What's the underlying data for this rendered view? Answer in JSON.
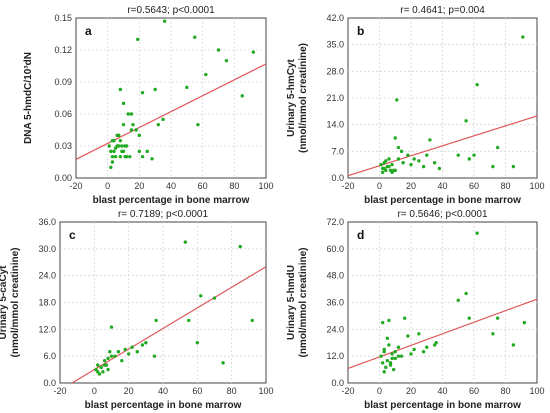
{
  "chart_data": [
    {
      "type": "scatter",
      "panel": "a",
      "stat": "r=0.5643; p<0.0001",
      "xlabel": "blast percentage in bone marrow",
      "ylabel": [
        "DNA 5-hmdC/10³dN"
      ],
      "xlim": [
        -20,
        100
      ],
      "ylim": [
        0.0,
        0.15
      ],
      "xticks": [
        "-20",
        "0",
        "20",
        "40",
        "60",
        "80",
        "100"
      ],
      "yticks": [
        "0.00",
        "0.03",
        "0.06",
        "0.09",
        "0.12",
        "0.15"
      ],
      "fit": [
        [
          -20,
          0.0175
        ],
        [
          100,
          0.107
        ]
      ],
      "x": [
        1,
        2,
        3,
        4,
        5,
        6,
        7,
        8,
        9,
        10,
        11,
        12,
        2,
        3,
        5,
        6,
        8,
        10,
        12,
        14,
        3,
        4,
        7,
        9,
        11,
        15,
        16,
        18,
        20,
        22,
        25,
        28,
        30,
        32,
        35,
        36,
        19,
        22,
        20,
        50,
        55,
        57,
        62,
        70,
        75,
        85,
        92,
        8,
        10,
        13,
        15
      ],
      "y": [
        0.03,
        0.025,
        0.02,
        0.035,
        0.028,
        0.04,
        0.03,
        0.02,
        0.025,
        0.05,
        0.03,
        0.02,
        0.01,
        0.015,
        0.02,
        0.03,
        0.035,
        0.025,
        0.03,
        0.02,
        0.035,
        0.025,
        0.04,
        0.03,
        0.02,
        0.06,
        0.05,
        0.045,
        0.025,
        0.02,
        0.025,
        0.018,
        0.083,
        0.05,
        0.055,
        0.147,
        0.13,
        0.08,
        0.04,
        0.085,
        0.132,
        0.05,
        0.097,
        0.12,
        0.11,
        0.077,
        0.118,
        0.083,
        0.07,
        0.06,
        0.045
      ]
    },
    {
      "type": "scatter",
      "panel": "b",
      "stat": "r= 0.4641; p=0.004",
      "xlabel": "blast percentage in bone marrow",
      "ylabel": [
        "Urinary 5-hmCyt",
        "(nmol/mmol creatinine)"
      ],
      "xlim": [
        -20,
        100
      ],
      "ylim": [
        0.0,
        42.0
      ],
      "xticks": [
        "-20",
        "0",
        "20",
        "40",
        "60",
        "80",
        "100"
      ],
      "yticks": [
        "0.0",
        "7.0",
        "14.0",
        "21.0",
        "28.0",
        "35.0",
        "42.0"
      ],
      "fit": [
        [
          -20,
          0.6
        ],
        [
          100,
          16.3
        ]
      ],
      "x": [
        1,
        2,
        3,
        4,
        5,
        6,
        7,
        8,
        9,
        10,
        2,
        3,
        4,
        6,
        8,
        10,
        12,
        14,
        15,
        18,
        20,
        22,
        25,
        28,
        30,
        32,
        35,
        38,
        50,
        55,
        57,
        60,
        62,
        72,
        75,
        85,
        91,
        12,
        11
      ],
      "y": [
        3.5,
        2.5,
        4.0,
        2.0,
        3.0,
        5.0,
        2.0,
        3.5,
        2.0,
        10.5,
        1.5,
        2.5,
        4.5,
        3.0,
        1.5,
        2.0,
        5.0,
        7.0,
        4.0,
        6.0,
        3.5,
        5.0,
        4.5,
        3.0,
        6.0,
        10.0,
        4.0,
        2.5,
        6.0,
        15.0,
        5.0,
        6.0,
        24.5,
        3.0,
        8.0,
        3.0,
        37.0,
        8.0,
        20.5
      ]
    },
    {
      "type": "scatter",
      "panel": "c",
      "stat": "r= 0.7189; p<0.0001",
      "xlabel": "blast percentage in bone marrow",
      "ylabel": [
        "Urinary 5-caCyt",
        "(nmol/mmol creatinine)"
      ],
      "xlim": [
        -20,
        100
      ],
      "ylim": [
        0.0,
        36.0
      ],
      "xticks": [
        "-20",
        "0",
        "20",
        "40",
        "60",
        "80",
        "100"
      ],
      "yticks": [
        "0.0",
        "6.0",
        "12.0",
        "18.0",
        "24.0",
        "30.0",
        "36.0"
      ],
      "fit": [
        [
          -13,
          0.0
        ],
        [
          100,
          26.0
        ]
      ],
      "x": [
        1,
        2,
        3,
        4,
        5,
        6,
        7,
        8,
        10,
        2,
        4,
        6,
        8,
        9,
        10,
        12,
        14,
        16,
        18,
        20,
        22,
        25,
        28,
        30,
        35,
        36,
        53,
        55,
        60,
        62,
        70,
        75,
        85,
        92
      ],
      "y": [
        3.0,
        4.0,
        2.0,
        3.5,
        2.5,
        5.0,
        4.0,
        3.0,
        6.0,
        2.5,
        3.5,
        4.0,
        5.5,
        7.0,
        12.5,
        6.0,
        7.0,
        5.0,
        7.5,
        6.5,
        8.0,
        7.0,
        8.5,
        9.0,
        6.0,
        14.0,
        31.5,
        14.0,
        9.0,
        19.5,
        19.0,
        4.5,
        30.5,
        14.0
      ]
    },
    {
      "type": "scatter",
      "panel": "d",
      "stat": "r= 0.5646; p<0.0001",
      "xlabel": "blast percentage in bone marrow",
      "ylabel": [
        "Urinary 5-hmdU",
        "(nmol/mmol creatinine)"
      ],
      "xlim": [
        -20,
        100
      ],
      "ylim": [
        0.0,
        72.0
      ],
      "xticks": [
        "-20",
        "0",
        "20",
        "40",
        "60",
        "80",
        "100"
      ],
      "yticks": [
        "0.0",
        "12.0",
        "24.0",
        "36.0",
        "48.0",
        "60.0",
        "72.0"
      ],
      "fit": [
        [
          -20,
          6.5
        ],
        [
          100,
          37.5
        ]
      ],
      "x": [
        1,
        2,
        3,
        4,
        5,
        6,
        7,
        8,
        9,
        10,
        2,
        3,
        5,
        7,
        8,
        10,
        12,
        14,
        16,
        18,
        20,
        22,
        25,
        28,
        30,
        35,
        36,
        50,
        55,
        57,
        62,
        72,
        75,
        85,
        92,
        3,
        6,
        12
      ],
      "y": [
        12,
        9,
        15,
        7,
        10,
        17,
        8,
        13,
        6,
        11,
        27,
        14,
        20,
        9,
        11,
        14,
        16,
        12,
        29,
        21,
        13,
        15,
        22,
        14,
        16,
        17,
        18,
        37,
        40,
        29,
        67,
        22,
        29,
        17,
        27,
        5,
        28,
        12
      ]
    }
  ]
}
